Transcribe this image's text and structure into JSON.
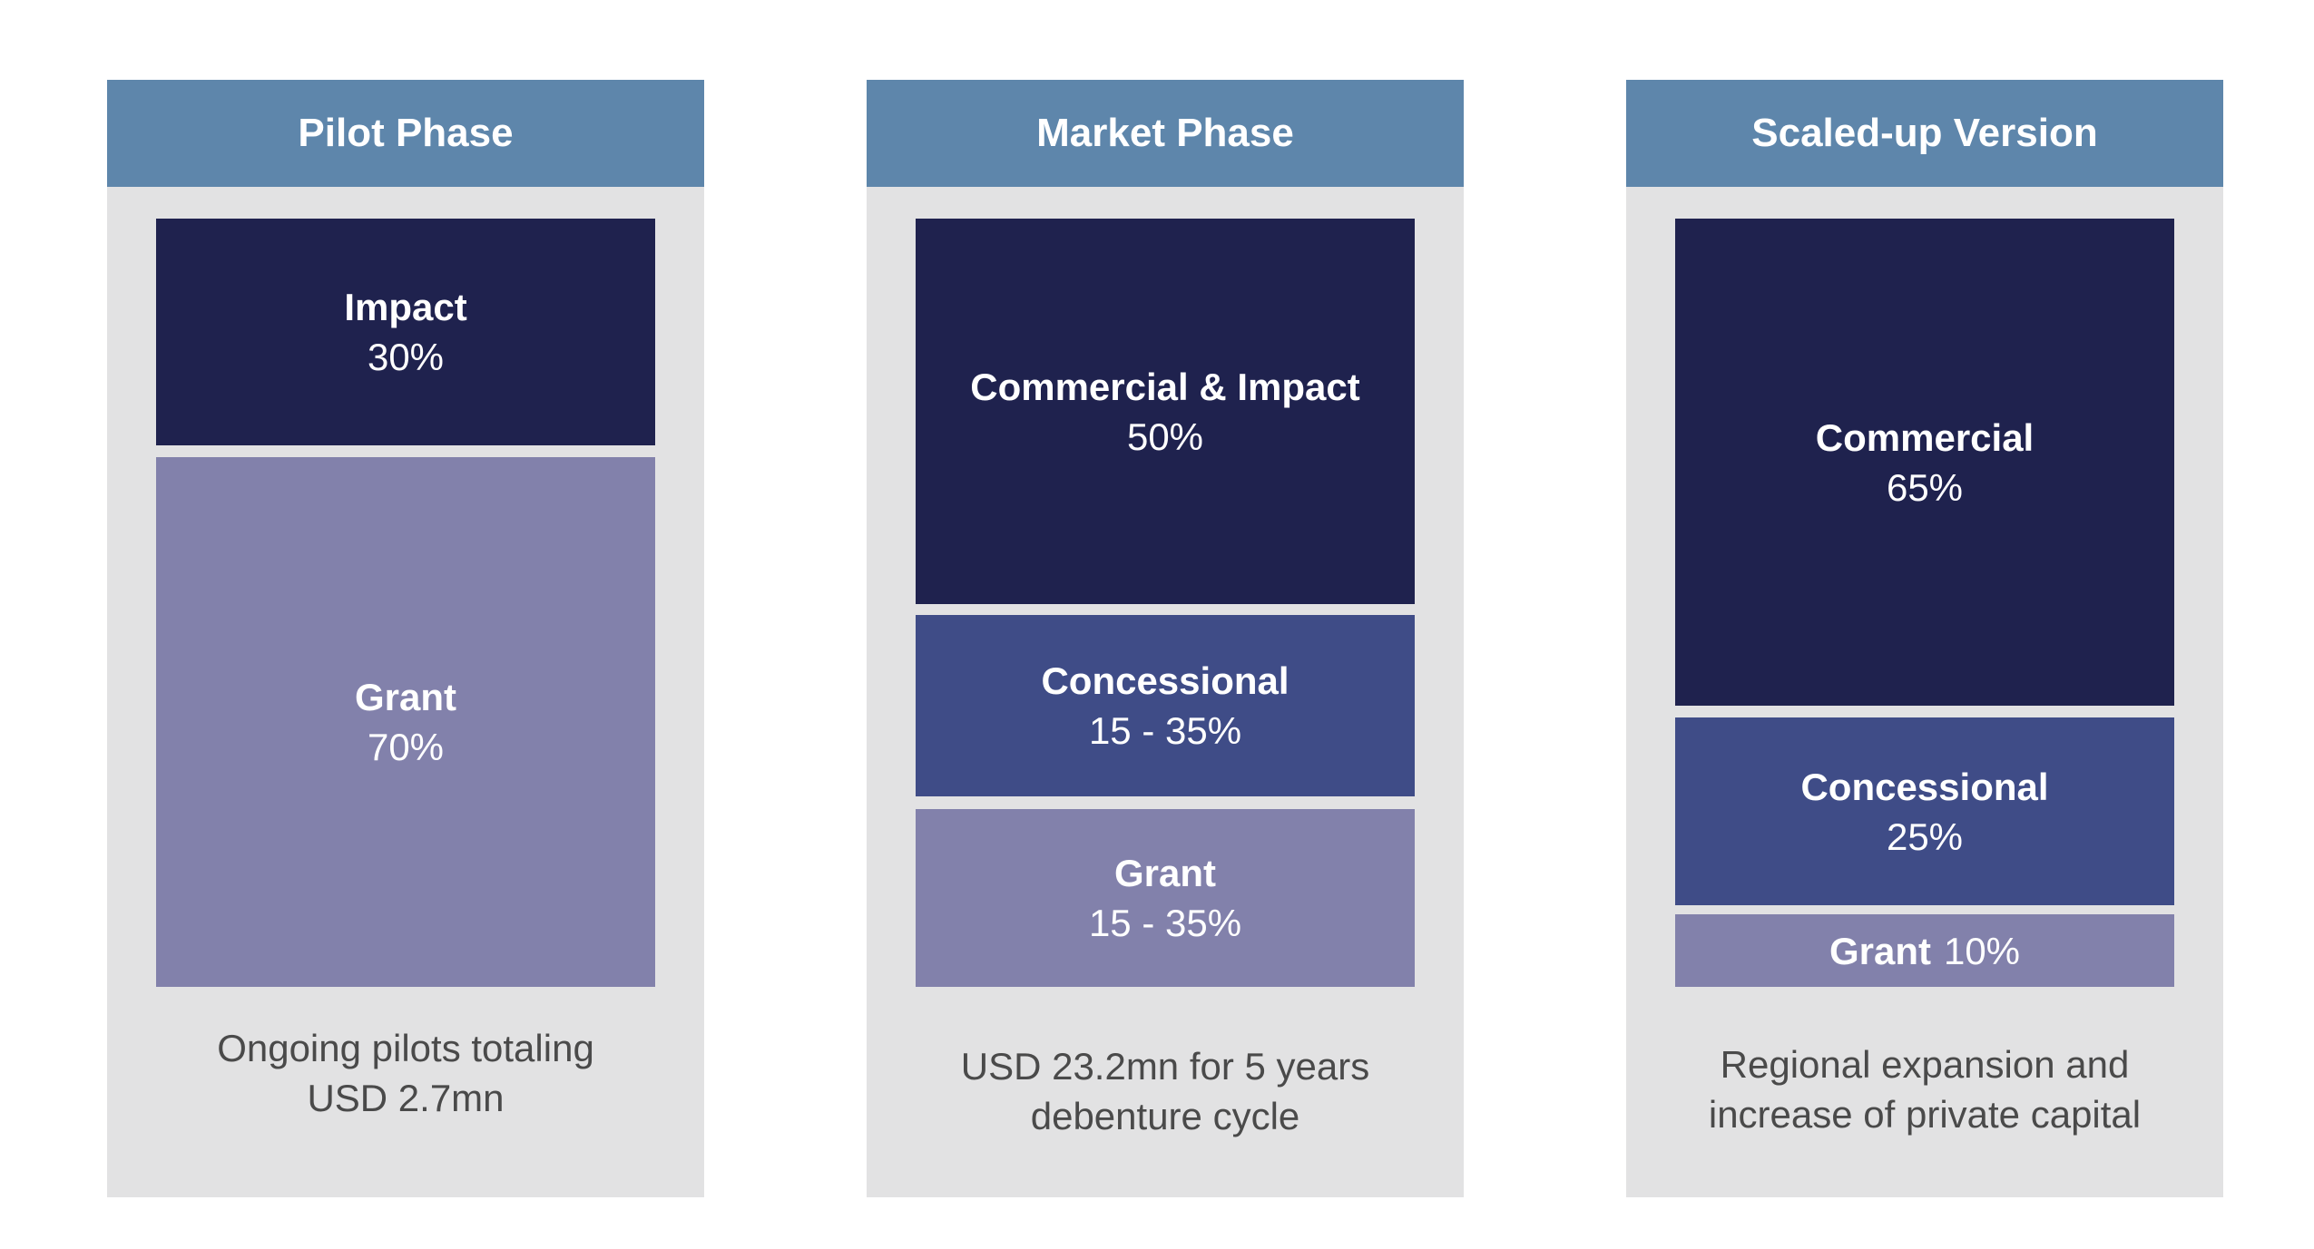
{
  "colors": {
    "header": "#5e86ab",
    "panel_background": "#e2e2e3",
    "commercial_impact": "#1f224e",
    "concessional": "#3f4c87",
    "grant": "#8281ab",
    "caption_text": "#4a4a4a"
  },
  "phases": [
    {
      "title": "Pilot Phase",
      "segments": [
        {
          "label": "Impact",
          "value": "30%"
        },
        {
          "label": "Grant",
          "value": "70%"
        }
      ],
      "caption": [
        "Ongoing pilots totaling",
        "USD 2.7mn"
      ]
    },
    {
      "title": "Market Phase",
      "segments": [
        {
          "label": "Commercial & Impact",
          "value": "50%"
        },
        {
          "label": "Concessional",
          "value": "15 - 35%"
        },
        {
          "label": "Grant",
          "value": "15 - 35%"
        }
      ],
      "caption": [
        "USD 23.2mn for 5 years",
        "debenture cycle"
      ]
    },
    {
      "title": "Scaled-up Version",
      "segments": [
        {
          "label": "Commercial",
          "value": "65%"
        },
        {
          "label": "Concessional",
          "value": "25%"
        },
        {
          "label": "Grant",
          "value": "10%"
        }
      ],
      "caption": [
        "Regional expansion and",
        "increase of private capital"
      ]
    }
  ]
}
